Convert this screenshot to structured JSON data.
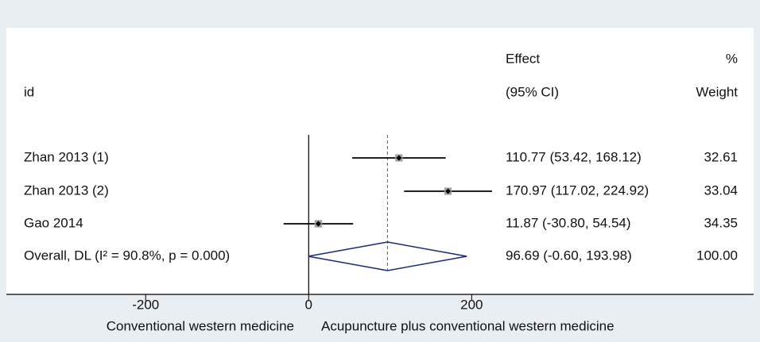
{
  "chart_data": {
    "type": "forest",
    "header": {
      "id": "id",
      "effect": [
        "Effect",
        "(95% CI)"
      ],
      "weight": [
        "%",
        "Weight"
      ]
    },
    "studies": [
      {
        "label": "Zhan 2013 (1)",
        "estimate": 110.77,
        "lower": 53.42,
        "upper": 168.12,
        "ci_label": "110.77 (53.42, 168.12)",
        "weight": 32.61
      },
      {
        "label": "Zhan 2013 (2)",
        "estimate": 170.97,
        "lower": 117.02,
        "upper": 224.92,
        "ci_label": "170.97 (117.02, 224.92)",
        "weight": 33.04
      },
      {
        "label": "Gao 2014",
        "estimate": 11.87,
        "lower": -30.8,
        "upper": 54.54,
        "ci_label": "11.87 (-30.80, 54.54)",
        "weight": 34.35
      }
    ],
    "overall": {
      "label": "Overall, DL (I² = 90.8%, p = 0.000)",
      "estimate": 96.69,
      "lower": -0.6,
      "upper": 193.98,
      "ci_label": "96.69 (-0.60, 193.98)",
      "weight": 100,
      "weight_label": "100.00"
    },
    "reference_line": 0,
    "xlim": [
      -367,
      226
    ],
    "xticks": [
      -200,
      0,
      200
    ],
    "xlabel_left": "Conventional western medicine",
    "xlabel_right": "Acupuncture plus conventional western medicine",
    "marker_color": "#000000",
    "box_color": "#a0a0a0",
    "diamond_color": "#1a2a7a",
    "overall_line_color": "#b03a3a"
  }
}
